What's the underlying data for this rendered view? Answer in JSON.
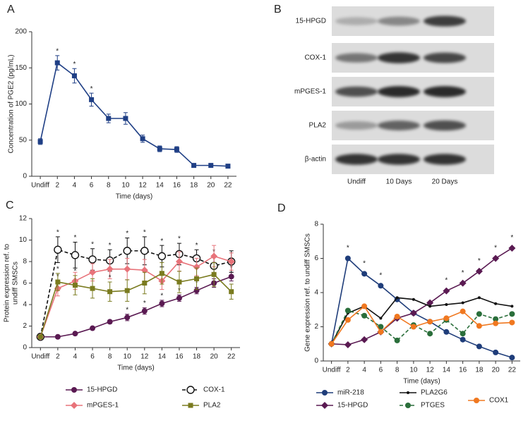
{
  "chart_data": [
    {
      "type": "line",
      "label": "A",
      "x_label": "Time (days)",
      "y_label": [
        "Concentration of PGE2 (pg/mL)"
      ],
      "categories": [
        "Undiff",
        "2",
        "4",
        "6",
        "8",
        "10",
        "12",
        "14",
        "16",
        "18",
        "20",
        "22"
      ],
      "ylim": [
        0,
        200
      ],
      "yticks": [
        0,
        50,
        100,
        150,
        200
      ],
      "series": [
        {
          "color": "#1f3f85",
          "marker": "square",
          "values": [
            48,
            157,
            139,
            106,
            80,
            80,
            52,
            38,
            37,
            15,
            15,
            14
          ],
          "errors": [
            4,
            10,
            10,
            9,
            6,
            8,
            5,
            4,
            4,
            1,
            1,
            1
          ],
          "significance": [
            null,
            "*",
            "*",
            "*",
            null,
            null,
            null,
            null,
            null,
            null,
            null,
            null
          ]
        }
      ]
    },
    {
      "type": "line",
      "label": "C",
      "x_label": "Time (days)",
      "y_label": [
        "Protein expression ref. to",
        "undiff SMSCs"
      ],
      "categories": [
        "Undiff",
        "2",
        "4",
        "6",
        "8",
        "10",
        "12",
        "14",
        "16",
        "18",
        "20",
        "22"
      ],
      "ylim": [
        0,
        12
      ],
      "yticks": [
        0,
        2,
        4,
        6,
        8,
        10,
        12
      ],
      "legend": "bottom",
      "series": [
        {
          "name": "15-HPGD",
          "color": "#5a1a52",
          "marker": "circle",
          "values": [
            1,
            1,
            1.3,
            1.8,
            2.4,
            2.8,
            3.4,
            4.1,
            4.6,
            5.3,
            6.0,
            6.6
          ],
          "errors": [
            0.1,
            0.1,
            0.1,
            0.1,
            0.15,
            0.3,
            0.3,
            0.3,
            0.3,
            0.3,
            0.4,
            0.4
          ],
          "significance": [
            null,
            null,
            null,
            null,
            null,
            "*",
            "*",
            "*",
            "*",
            "*",
            "*",
            "*"
          ]
        },
        {
          "name": "COX-1",
          "color": "#111111",
          "marker": "open-circle",
          "dashed": true,
          "values": [
            1,
            9.1,
            8.6,
            8.2,
            8.1,
            9.0,
            9.0,
            8.5,
            8.7,
            8.3,
            7.6,
            8.0
          ],
          "errors": [
            0.1,
            1.2,
            1.2,
            1.0,
            1.0,
            1.2,
            1.3,
            1.0,
            1.0,
            0.8,
            0.9,
            1.0
          ],
          "significance": [
            null,
            "*",
            "*",
            "*",
            "*",
            "*",
            "*",
            "*",
            "*",
            "*",
            "*",
            null
          ]
        },
        {
          "name": "mPGES-1",
          "color": "#e8737a",
          "marker": "diamond",
          "values": [
            1,
            5.5,
            6.2,
            7.0,
            7.3,
            7.3,
            7.2,
            6.2,
            8.0,
            7.5,
            8.5,
            8.0
          ],
          "errors": [
            0.1,
            0.7,
            0.8,
            0.8,
            0.9,
            1.0,
            1.0,
            0.8,
            0.9,
            0.8,
            1.0,
            0.8
          ],
          "significance": [
            null,
            "*",
            null,
            null,
            null,
            null,
            null,
            null,
            null,
            null,
            null,
            null
          ]
        },
        {
          "name": "PLA2",
          "color": "#7a7b1f",
          "marker": "square",
          "values": [
            1,
            6.1,
            5.8,
            5.5,
            5.2,
            5.3,
            6.0,
            6.9,
            6.1,
            6.4,
            6.8,
            5.2
          ],
          "errors": [
            0.1,
            0.8,
            0.9,
            0.9,
            0.9,
            1.0,
            1.0,
            1.0,
            1.0,
            1.0,
            1.1,
            0.7
          ],
          "significance": [
            null,
            "*",
            "*",
            null,
            "*",
            null,
            null,
            null,
            null,
            null,
            null,
            null
          ]
        }
      ]
    },
    {
      "type": "line",
      "label": "D",
      "x_label": "Time (days)",
      "y_label": [
        "Gene expression ref. to undiff SMSCs"
      ],
      "categories": [
        "Undiff",
        "2",
        "4",
        "6",
        "8",
        "10",
        "12",
        "14",
        "16",
        "18",
        "20",
        "22"
      ],
      "ylim": [
        0,
        8
      ],
      "yticks": [
        0,
        2,
        4,
        6,
        8
      ],
      "legend": "bottom",
      "series": [
        {
          "name": "miR-218",
          "color": "#1f3d7a",
          "marker": "circle",
          "values": [
            1,
            6.0,
            5.1,
            4.4,
            3.6,
            2.8,
            2.3,
            1.7,
            1.25,
            0.85,
            0.5,
            0.2
          ],
          "significance": [
            null,
            "*",
            "*",
            "*",
            null,
            null,
            null,
            null,
            null,
            null,
            null,
            null
          ]
        },
        {
          "name": "15-HPGD",
          "color": "#5a1a52",
          "marker": "diamond",
          "values": [
            1,
            0.95,
            1.25,
            1.7,
            2.5,
            2.8,
            3.4,
            4.1,
            4.55,
            5.25,
            6.0,
            6.6
          ],
          "significance": [
            null,
            null,
            null,
            null,
            null,
            null,
            null,
            "*",
            "*",
            "*",
            "*",
            "*"
          ]
        },
        {
          "name": "PLA2G6",
          "color": "#111111",
          "marker": "dot",
          "values": [
            1,
            2.8,
            3.2,
            2.5,
            3.7,
            3.6,
            3.2,
            3.3,
            3.4,
            3.7,
            3.35,
            3.2
          ]
        },
        {
          "name": "PTGES",
          "color": "#2a6e3a",
          "marker": "circle",
          "dashed": true,
          "values": [
            1,
            2.95,
            2.65,
            2.0,
            1.2,
            2.1,
            1.6,
            2.4,
            1.6,
            2.75,
            2.45,
            2.75
          ]
        },
        {
          "name": "COX1",
          "color": "#f07820",
          "marker": "circle",
          "values": [
            1,
            2.4,
            3.2,
            1.7,
            2.6,
            2.0,
            2.3,
            2.5,
            2.9,
            2.05,
            2.2,
            2.25
          ]
        }
      ]
    }
  ],
  "blot": {
    "label": "B",
    "rows": [
      "15-HPGD",
      "COX-1",
      "mPGES-1",
      "PLA2",
      "β-actin"
    ],
    "columns": [
      "Undiff",
      "10 Days",
      "20 Days"
    ]
  }
}
